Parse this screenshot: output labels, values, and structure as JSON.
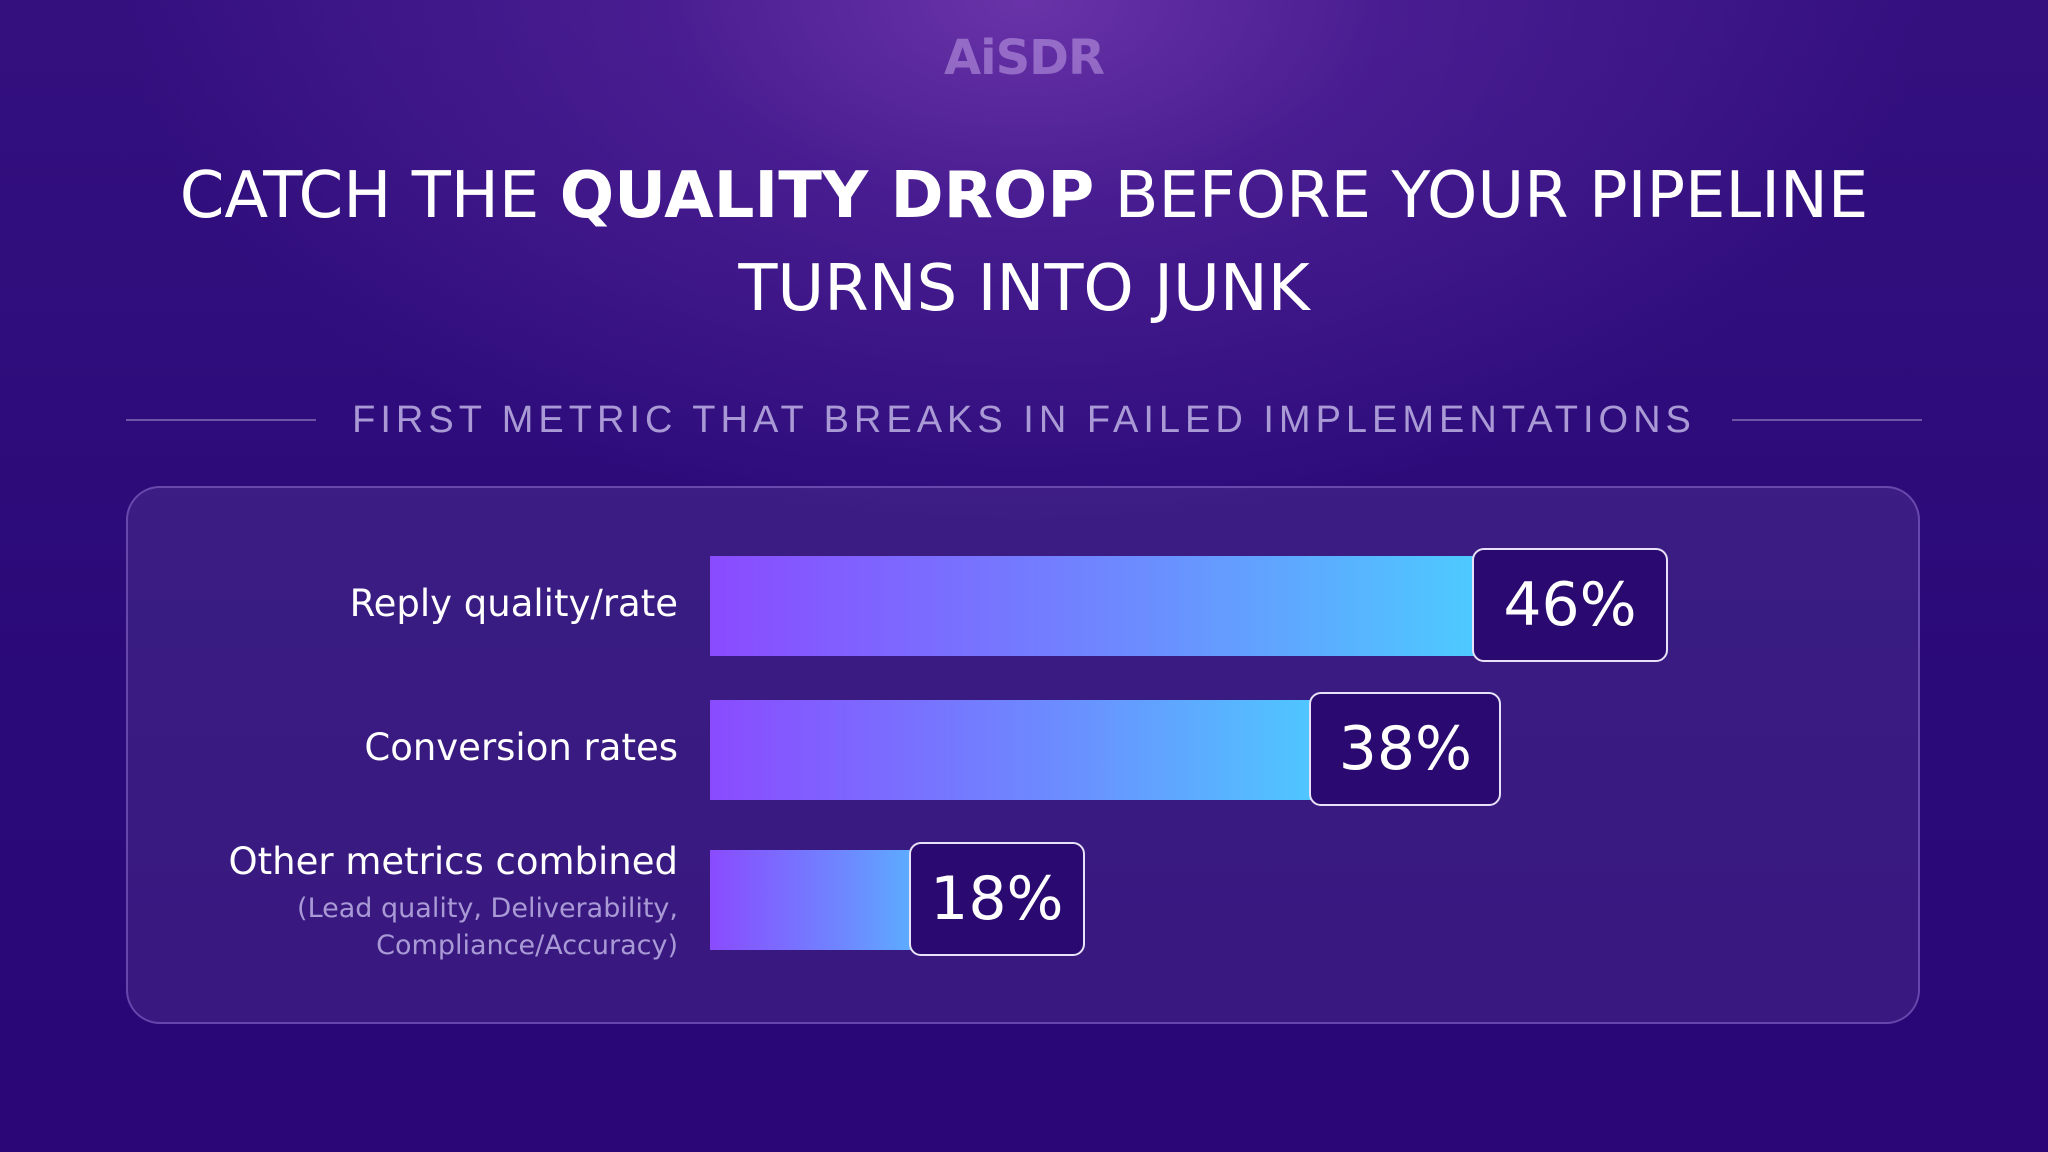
{
  "logo": "AiSDR",
  "title": {
    "part1": "CATCH THE ",
    "bold": "QUALITY DROP",
    "part2": " BEFORE YOUR PIPELINE",
    "line2": "TURNS INTO JUNK"
  },
  "subtitle": "FIRST METRIC THAT BREAKS IN FAILED IMPLEMENTATIONS",
  "colors": {
    "bar_start": "#8a4bff",
    "bar_end": "#44dcff",
    "badge_bg": "#2a0a70",
    "background": "#2a0a78"
  },
  "chart_data": {
    "type": "bar",
    "orientation": "horizontal",
    "title": "FIRST METRIC THAT BREAKS IN FAILED IMPLEMENTATIONS",
    "categories": [
      "Reply quality/rate",
      "Conversion rates",
      "Other metrics combined"
    ],
    "category_notes": [
      "",
      "",
      "(Lead quality, Deliverability,\nCompliance/Accuracy)"
    ],
    "values": [
      46,
      38,
      18
    ],
    "value_labels": [
      "46%",
      "38%",
      "18%"
    ],
    "unit": "%",
    "xlim": [
      0,
      50
    ],
    "grid": false,
    "legend": "none"
  }
}
